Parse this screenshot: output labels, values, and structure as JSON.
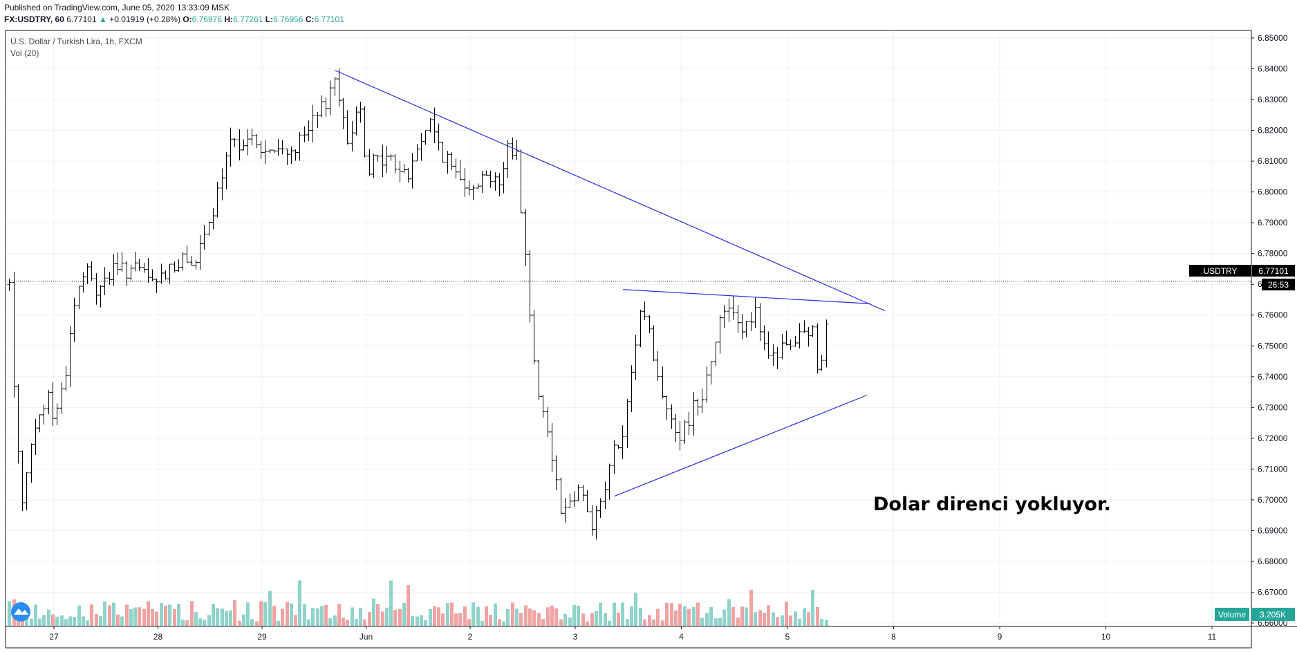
{
  "header": {
    "published": "Published on TradingView.com, June 05, 2020 13:33:09 MSK",
    "symbol": "FX:USDTRY, 60",
    "last": "6.77101",
    "change": "+0.01919 (+0.28%)",
    "o_label": "O:",
    "o": "6.76976",
    "h_label": "H:",
    "h": "6.77261",
    "l_label": "L:",
    "l": "6.76956",
    "c_label": "C:",
    "c": "6.77101"
  },
  "legend": {
    "title": "U.S. Dollar / Turkish Lira, 1h, FXCM",
    "indicator": "Vol (20)"
  },
  "annotation": "Dolar direnci yokluyor.",
  "colors": {
    "bar": "#000000",
    "trendline": "#2a2ae8",
    "vol_up": "#8fd3cb",
    "vol_down": "#f0a3a3",
    "grid": "#eef0f3",
    "badge": "#000000",
    "vol_badge": "#26a69a"
  },
  "icons": [
    "tradingview-logo-icon"
  ],
  "chart_data": {
    "type": "ohlc",
    "title": "U.S. Dollar / Turkish Lira, 1h, FXCM",
    "price_ticks": [
      "6.85000",
      "6.84000",
      "6.83000",
      "6.82000",
      "6.81000",
      "6.80000",
      "6.79000",
      "6.78000",
      "6.77000",
      "6.76000",
      "6.75000",
      "6.74000",
      "6.73000",
      "6.72000",
      "6.71000",
      "6.70000",
      "6.69000",
      "6.68000",
      "6.67000",
      "6.66000"
    ],
    "ylim": [
      6.655,
      6.852
    ],
    "xlim_days": [
      26.57,
      37.62
    ],
    "x_ticks": [
      {
        "label": "27",
        "day": 27
      },
      {
        "label": "28",
        "day": 28
      },
      {
        "label": "29",
        "day": 29
      },
      {
        "label": "Jun",
        "day": 30
      },
      {
        "label": "2",
        "day": 31
      },
      {
        "label": "3",
        "day": 32
      },
      {
        "label": "4",
        "day": 33
      },
      {
        "label": "5",
        "day": 34
      },
      {
        "label": "8",
        "day": 35
      },
      {
        "label": "9",
        "day": 36
      },
      {
        "label": "10",
        "day": 37
      },
      {
        "label": "11",
        "day": 38
      }
    ],
    "current_price": {
      "symbol": "USDTRY",
      "value": "6.77101",
      "countdown": "26:53"
    },
    "volume_label": {
      "name": "Volume",
      "value": "3.205K"
    },
    "anchors": [
      [
        26.57,
        6.77
      ],
      [
        26.62,
        6.73
      ],
      [
        26.7,
        6.7
      ],
      [
        26.8,
        6.72
      ],
      [
        26.95,
        6.735
      ],
      [
        27.0,
        6.725
      ],
      [
        27.1,
        6.74
      ],
      [
        27.2,
        6.765
      ],
      [
        27.3,
        6.775
      ],
      [
        27.4,
        6.768
      ],
      [
        27.55,
        6.774
      ],
      [
        27.75,
        6.775
      ],
      [
        27.9,
        6.772
      ],
      [
        28.0,
        6.77
      ],
      [
        28.1,
        6.776
      ],
      [
        28.25,
        6.777
      ],
      [
        28.4,
        6.78
      ],
      [
        28.5,
        6.79
      ],
      [
        28.6,
        6.803
      ],
      [
        28.7,
        6.815
      ],
      [
        28.85,
        6.818
      ],
      [
        28.95,
        6.815
      ],
      [
        29.05,
        6.812
      ],
      [
        29.2,
        6.813
      ],
      [
        29.35,
        6.815
      ],
      [
        29.45,
        6.82
      ],
      [
        29.55,
        6.825
      ],
      [
        29.65,
        6.833
      ],
      [
        29.7,
        6.838
      ],
      [
        29.75,
        6.83
      ],
      [
        29.8,
        6.815
      ],
      [
        29.9,
        6.825
      ],
      [
        29.95,
        6.83
      ],
      [
        30.0,
        6.808
      ],
      [
        30.1,
        6.81
      ],
      [
        30.2,
        6.811
      ],
      [
        30.3,
        6.808
      ],
      [
        30.4,
        6.805
      ],
      [
        30.5,
        6.815
      ],
      [
        30.6,
        6.823
      ],
      [
        30.7,
        6.815
      ],
      [
        30.8,
        6.808
      ],
      [
        30.9,
        6.805
      ],
      [
        31.0,
        6.803
      ],
      [
        31.15,
        6.805
      ],
      [
        31.25,
        6.806
      ],
      [
        31.3,
        6.8
      ],
      [
        31.35,
        6.815
      ],
      [
        31.45,
        6.812
      ],
      [
        31.5,
        6.79
      ],
      [
        31.55,
        6.77
      ],
      [
        31.62,
        6.74
      ],
      [
        31.7,
        6.73
      ],
      [
        31.8,
        6.71
      ],
      [
        31.88,
        6.695
      ],
      [
        31.95,
        6.7
      ],
      [
        32.05,
        6.705
      ],
      [
        32.15,
        6.692
      ],
      [
        32.25,
        6.7
      ],
      [
        32.35,
        6.715
      ],
      [
        32.45,
        6.72
      ],
      [
        32.55,
        6.745
      ],
      [
        32.6,
        6.76
      ],
      [
        32.65,
        6.762
      ],
      [
        32.72,
        6.75
      ],
      [
        32.8,
        6.735
      ],
      [
        32.9,
        6.728
      ],
      [
        33.0,
        6.72
      ],
      [
        33.1,
        6.73
      ],
      [
        33.2,
        6.735
      ],
      [
        33.3,
        6.75
      ],
      [
        33.4,
        6.762
      ],
      [
        33.48,
        6.764
      ],
      [
        33.55,
        6.755
      ],
      [
        33.62,
        6.76
      ],
      [
        33.7,
        6.76
      ],
      [
        33.8,
        6.745
      ],
      [
        33.9,
        6.748
      ],
      [
        34.0,
        6.75
      ],
      [
        34.1,
        6.752
      ],
      [
        34.25,
        6.755
      ],
      [
        34.3,
        6.735
      ],
      [
        34.35,
        6.758
      ],
      [
        34.42,
        6.765
      ],
      [
        34.5,
        6.768
      ],
      [
        34.56,
        6.77
      ],
      [
        34.62,
        6.771
      ]
    ],
    "trendlines": [
      {
        "name": "descending-resistance",
        "p1": [
          29.7,
          6.8395
        ],
        "p2": [
          34.92,
          6.7614
        ]
      },
      {
        "name": "flat-resistance",
        "p1": [
          32.45,
          6.7683
        ],
        "p2": [
          34.78,
          6.7637
        ]
      },
      {
        "name": "ascending-support",
        "p1": [
          32.37,
          6.7012
        ],
        "p2": [
          34.75,
          6.734
        ]
      }
    ]
  }
}
